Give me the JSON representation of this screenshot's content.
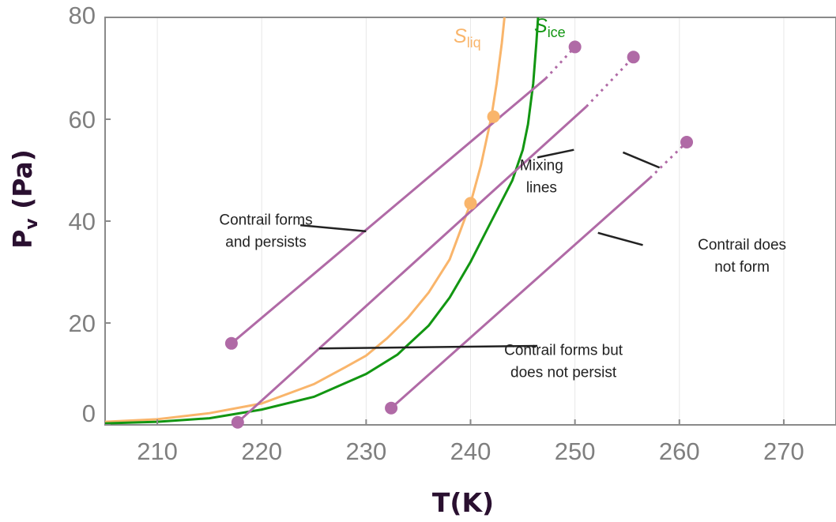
{
  "chart_data": {
    "type": "line",
    "title": "",
    "xlabel": "T(K)",
    "ylabel": "P",
    "ylabel_sub": "v",
    "ylabel_unit": " (Pa)",
    "xlim": [
      205,
      275
    ],
    "ylim": [
      0,
      80
    ],
    "xticks": [
      210,
      220,
      230,
      240,
      250,
      260,
      270
    ],
    "yticks": [
      0,
      20,
      40,
      60,
      80
    ],
    "grid": "x-only",
    "colors": {
      "s_liq": "#f9b56b",
      "s_ice": "#129612",
      "mixing": "#b06aa6",
      "annotation_line": "#222222",
      "axis": "#8a8a8a",
      "ticks": "#7f7f7f",
      "axis_title": "#2a1030"
    },
    "curves": [
      {
        "name": "S_liq",
        "label_main": "S",
        "label_sub": "liq",
        "color": "#f9b56b",
        "points": [
          [
            205,
            0.6
          ],
          [
            210,
            1.1
          ],
          [
            215,
            2.3
          ],
          [
            220,
            4.2
          ],
          [
            225,
            8.0
          ],
          [
            228,
            11.3
          ],
          [
            230,
            13.6
          ],
          [
            232,
            17.0
          ],
          [
            234,
            21.0
          ],
          [
            236,
            26.0
          ],
          [
            238,
            32.5
          ],
          [
            240,
            43.5
          ],
          [
            241,
            51.0
          ],
          [
            242,
            60.5
          ],
          [
            242.5,
            67.0
          ],
          [
            243,
            75.0
          ],
          [
            243.3,
            81.0
          ]
        ]
      },
      {
        "name": "S_ice",
        "label_main": "S",
        "label_sub": "ice",
        "color": "#129612",
        "points": [
          [
            205,
            0.3
          ],
          [
            210,
            0.6
          ],
          [
            215,
            1.3
          ],
          [
            220,
            3.0
          ],
          [
            225,
            5.5
          ],
          [
            230,
            10.0
          ],
          [
            233,
            13.8
          ],
          [
            236,
            19.5
          ],
          [
            238,
            25.0
          ],
          [
            240,
            32.0
          ],
          [
            242,
            40.0
          ],
          [
            244,
            48.0
          ],
          [
            245,
            54.0
          ],
          [
            245.5,
            59.0
          ],
          [
            246,
            67.0
          ],
          [
            246.3,
            75.0
          ],
          [
            246.5,
            81.0
          ]
        ]
      }
    ],
    "mixing_lines": [
      {
        "name": "mixing-line-1",
        "start": [
          217.1,
          16.0
        ],
        "solid_end": [
          247.2,
          68.0
        ],
        "dotted_end": [
          250.0,
          74.2
        ],
        "start_marker": true,
        "end_marker": true
      },
      {
        "name": "mixing-line-2",
        "start": [
          217.7,
          0.5
        ],
        "solid_end": [
          251.1,
          62.5
        ],
        "dotted_end": [
          255.6,
          72.2
        ],
        "start_marker": true,
        "end_marker": true
      },
      {
        "name": "mixing-line-3",
        "start": [
          232.4,
          3.3
        ],
        "solid_end": [
          257.2,
          48.5
        ],
        "dotted_end": [
          260.7,
          55.5
        ],
        "start_marker": true,
        "end_marker": true
      }
    ],
    "markers_on_s_liq": [
      [
        242.2,
        60.5
      ],
      [
        240.0,
        43.5
      ]
    ],
    "annotations": [
      {
        "name": "mixing-lines-annotation",
        "lines": [
          "Mixing",
          "lines"
        ],
        "text_at": [
          246.8,
          50.0
        ],
        "pointers": [
          [
            [
              246.4,
              52.5
            ],
            [
              249.9,
              54.0
            ]
          ],
          [
            [
              254.6,
              53.5
            ],
            [
              258.1,
              50.5
            ]
          ]
        ]
      },
      {
        "name": "contrail-forms-persists-annotation",
        "lines": [
          "Contrail forms",
          "and persists"
        ],
        "text_at": [
          220.4,
          39.3
        ],
        "pointers": [
          [
            [
              223.7,
              39.2
            ],
            [
              230.0,
              38.0
            ]
          ]
        ]
      },
      {
        "name": "contrail-does-not-form-annotation",
        "lines": [
          "Contrail does",
          "not form"
        ],
        "text_at": [
          266.0,
          34.4
        ],
        "pointers": [
          [
            [
              252.2,
              37.7
            ],
            [
              256.5,
              35.3
            ]
          ]
        ]
      },
      {
        "name": "contrail-forms-not-persist-annotation",
        "lines": [
          "Contrail forms but",
          "does not persist"
        ],
        "text_at": [
          248.9,
          13.7
        ],
        "pointers": [
          [
            [
              225.5,
              15.0
            ],
            [
              246.4,
              15.5
            ]
          ]
        ]
      }
    ]
  }
}
